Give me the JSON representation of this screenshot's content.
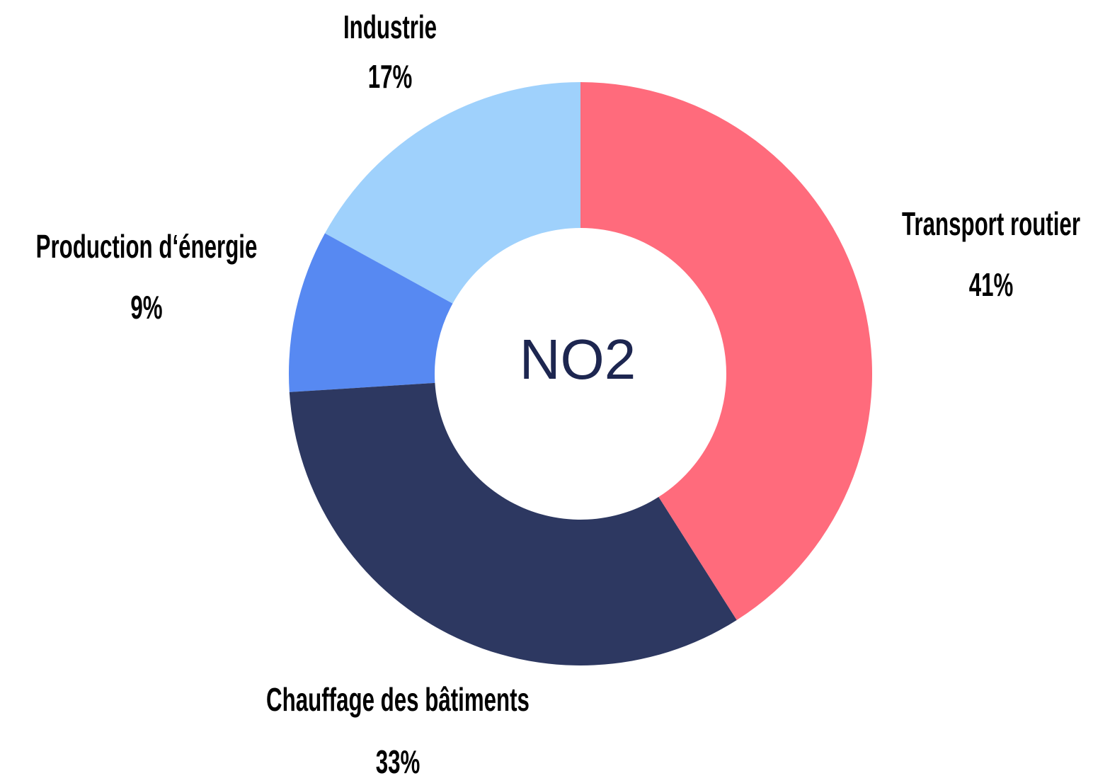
{
  "chart_data": {
    "type": "donut",
    "center_text": "NO2",
    "categories": [
      "Transport routier",
      "Chauffage des bâtiments",
      "Production d‘énergie",
      "Industrie"
    ],
    "values": [
      41,
      33,
      9,
      17
    ],
    "value_labels": [
      "41%",
      "33%",
      "9%",
      "17%"
    ],
    "colors": [
      "#ff6b7c",
      "#2d3861",
      "#5789f2",
      "#9fd1fc"
    ]
  }
}
